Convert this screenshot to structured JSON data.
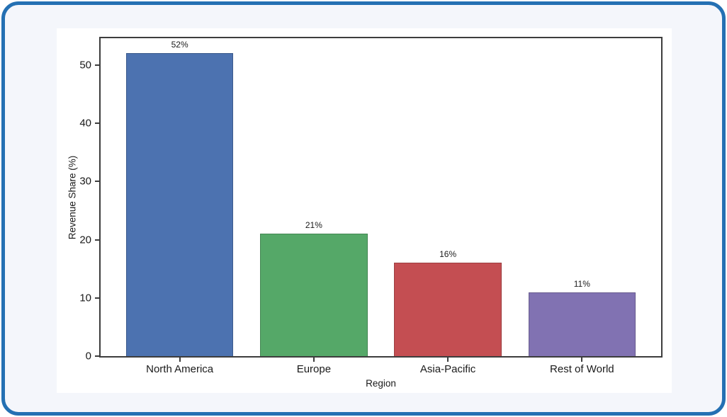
{
  "frame": {
    "border_color": "#2470B3",
    "background_color": "#F4F6FB",
    "panel_color": "#FFFFFF"
  },
  "chart_data": {
    "type": "bar",
    "title": "",
    "xlabel": "Region",
    "ylabel": "Revenue Share (%)",
    "categories": [
      "North America",
      "Europe",
      "Asia-Pacific",
      "Rest of World"
    ],
    "values": [
      52,
      21,
      16,
      11
    ],
    "value_labels": [
      "52%",
      "21%",
      "16%",
      "11%"
    ],
    "bar_colors": [
      "#4C72B0",
      "#55A868",
      "#C44E52",
      "#8172B2"
    ],
    "ylim": [
      0,
      54.6
    ],
    "yticks": [
      0,
      10,
      20,
      30,
      40,
      50
    ],
    "grid": false,
    "legend": "none",
    "axis_color": "#3D3D3D",
    "text_color": "#1A1A1A"
  }
}
